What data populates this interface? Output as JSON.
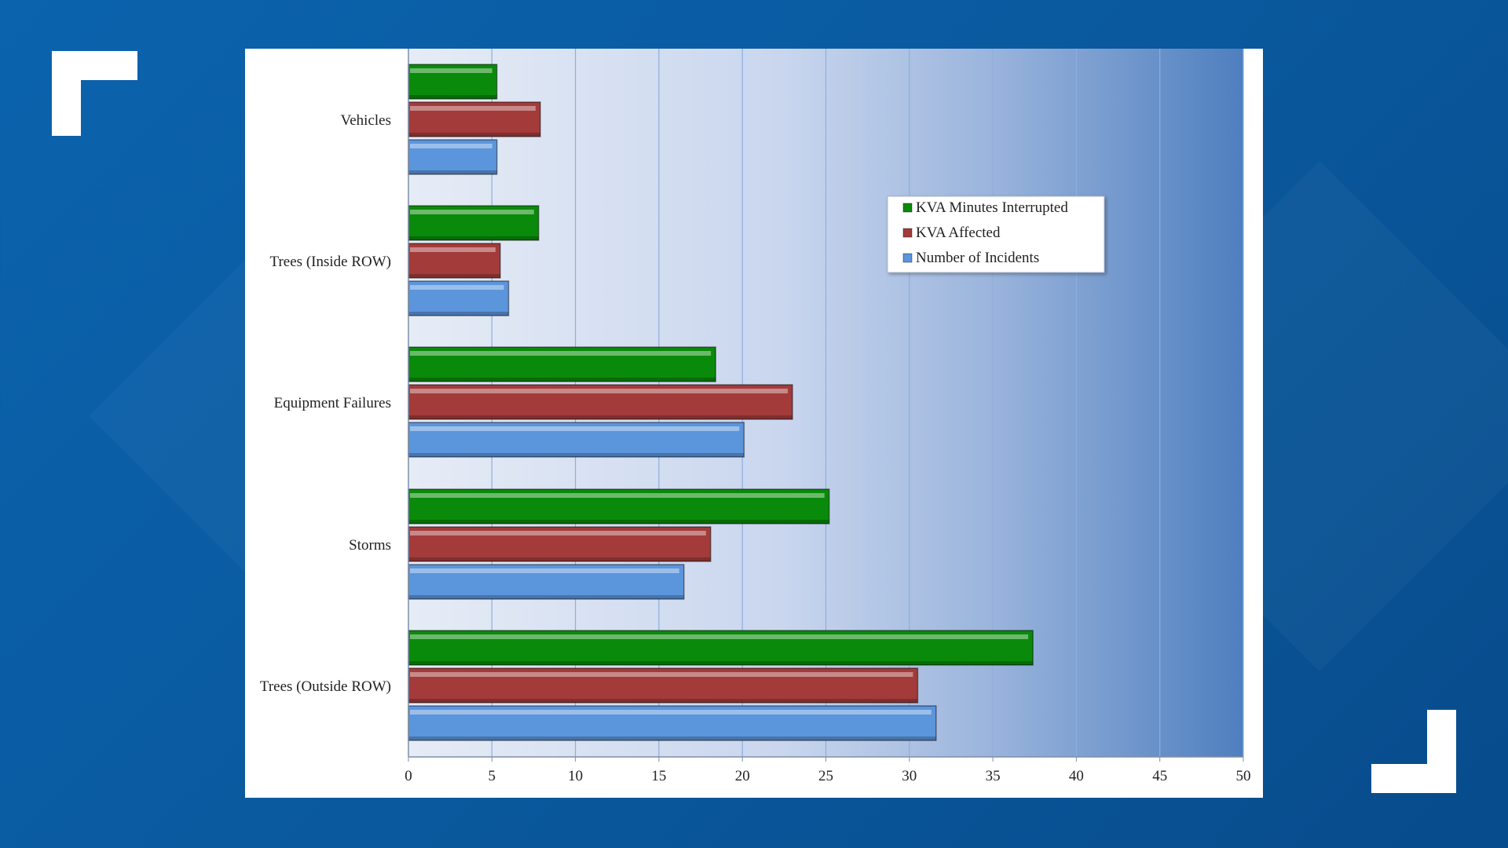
{
  "chart_data": {
    "type": "bar",
    "orientation": "horizontal",
    "categories": [
      "Vehicles",
      "Trees (Inside ROW)",
      "Equipment Failures",
      "Storms",
      "Trees (Outside ROW)"
    ],
    "series": [
      {
        "name": "KVA Minutes Interrupted",
        "color": "#0a8a0a",
        "values": [
          5.3,
          7.8,
          18.4,
          25.2,
          37.4
        ]
      },
      {
        "name": "KVA Affected",
        "color": "#a33b3b",
        "values": [
          7.9,
          5.5,
          23.0,
          18.1,
          30.5
        ]
      },
      {
        "name": "Number of Incidents",
        "color": "#5b95dc",
        "values": [
          5.3,
          6.0,
          20.1,
          16.5,
          31.6
        ]
      }
    ],
    "xlim": [
      0,
      50
    ],
    "xticks": [
      "0",
      "5",
      "10",
      "15",
      "20",
      "25",
      "30",
      "35",
      "40",
      "45",
      "50"
    ],
    "grid": true,
    "legend_position": "upper-right"
  }
}
